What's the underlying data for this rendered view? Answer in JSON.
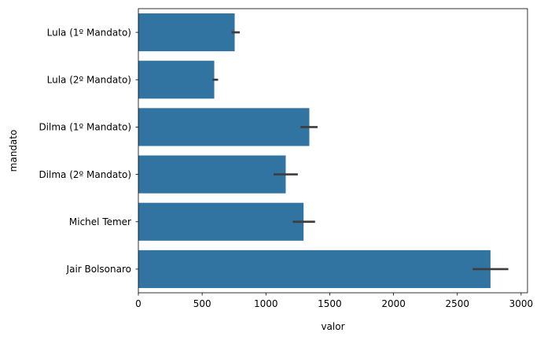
{
  "chart_data": {
    "type": "bar",
    "orientation": "horizontal",
    "categories": [
      "Lula (1º Mandato)",
      "Lula (2º Mandato)",
      "Dilma (1º Mandato)",
      "Dilma (2º Mandato)",
      "Michel Temer",
      "Jair Bolsonaro"
    ],
    "values": [
      755,
      595,
      1340,
      1155,
      1295,
      2760
    ],
    "error_bars": [
      [
        730,
        795
      ],
      [
        580,
        625
      ],
      [
        1270,
        1405
      ],
      [
        1060,
        1250
      ],
      [
        1210,
        1385
      ],
      [
        2620,
        2900
      ]
    ],
    "xlabel": "valor",
    "ylabel": "mandato",
    "xlim": [
      0,
      3050
    ],
    "xticks": [
      0,
      500,
      1000,
      1500,
      2000,
      2500,
      3000
    ],
    "grid": false,
    "bar_color": "#3274a1",
    "errorbar_color": "#3d3d3d"
  }
}
